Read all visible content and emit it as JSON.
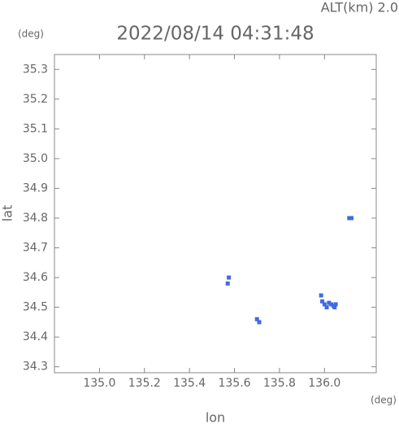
{
  "chart_data": {
    "type": "scatter",
    "title": "2022/08/14 04:31:48",
    "annotation": "ALT(km) 2.0",
    "y_unit": "(deg)",
    "x_unit": "(deg)",
    "xlabel": "lon",
    "ylabel": "lat",
    "color": "#4169e1",
    "x": [
      135.57,
      135.575,
      135.7,
      135.71,
      136.11,
      136.12,
      135.985,
      135.99,
      136.0,
      136.01,
      136.02,
      136.03,
      136.04,
      136.045,
      136.05
    ],
    "values": [
      34.58,
      34.6,
      34.46,
      34.45,
      34.8,
      34.8,
      34.54,
      34.52,
      34.51,
      34.5,
      34.515,
      34.51,
      34.505,
      34.5,
      34.51
    ],
    "xlim": [
      134.8,
      136.23
    ],
    "ylim": [
      34.28,
      35.35
    ],
    "xticks": [
      {
        "value": 135.0,
        "label": "135.0"
      },
      135.2,
      135.4,
      135.6,
      135.8,
      {
        "value": 136.0,
        "label": "136.0"
      }
    ],
    "yticks": [
      34.3,
      34.4,
      34.5,
      34.6,
      34.7,
      34.8,
      34.9,
      {
        "value": 35.0,
        "label": "35.0"
      },
      35.1,
      35.2,
      35.3
    ]
  }
}
